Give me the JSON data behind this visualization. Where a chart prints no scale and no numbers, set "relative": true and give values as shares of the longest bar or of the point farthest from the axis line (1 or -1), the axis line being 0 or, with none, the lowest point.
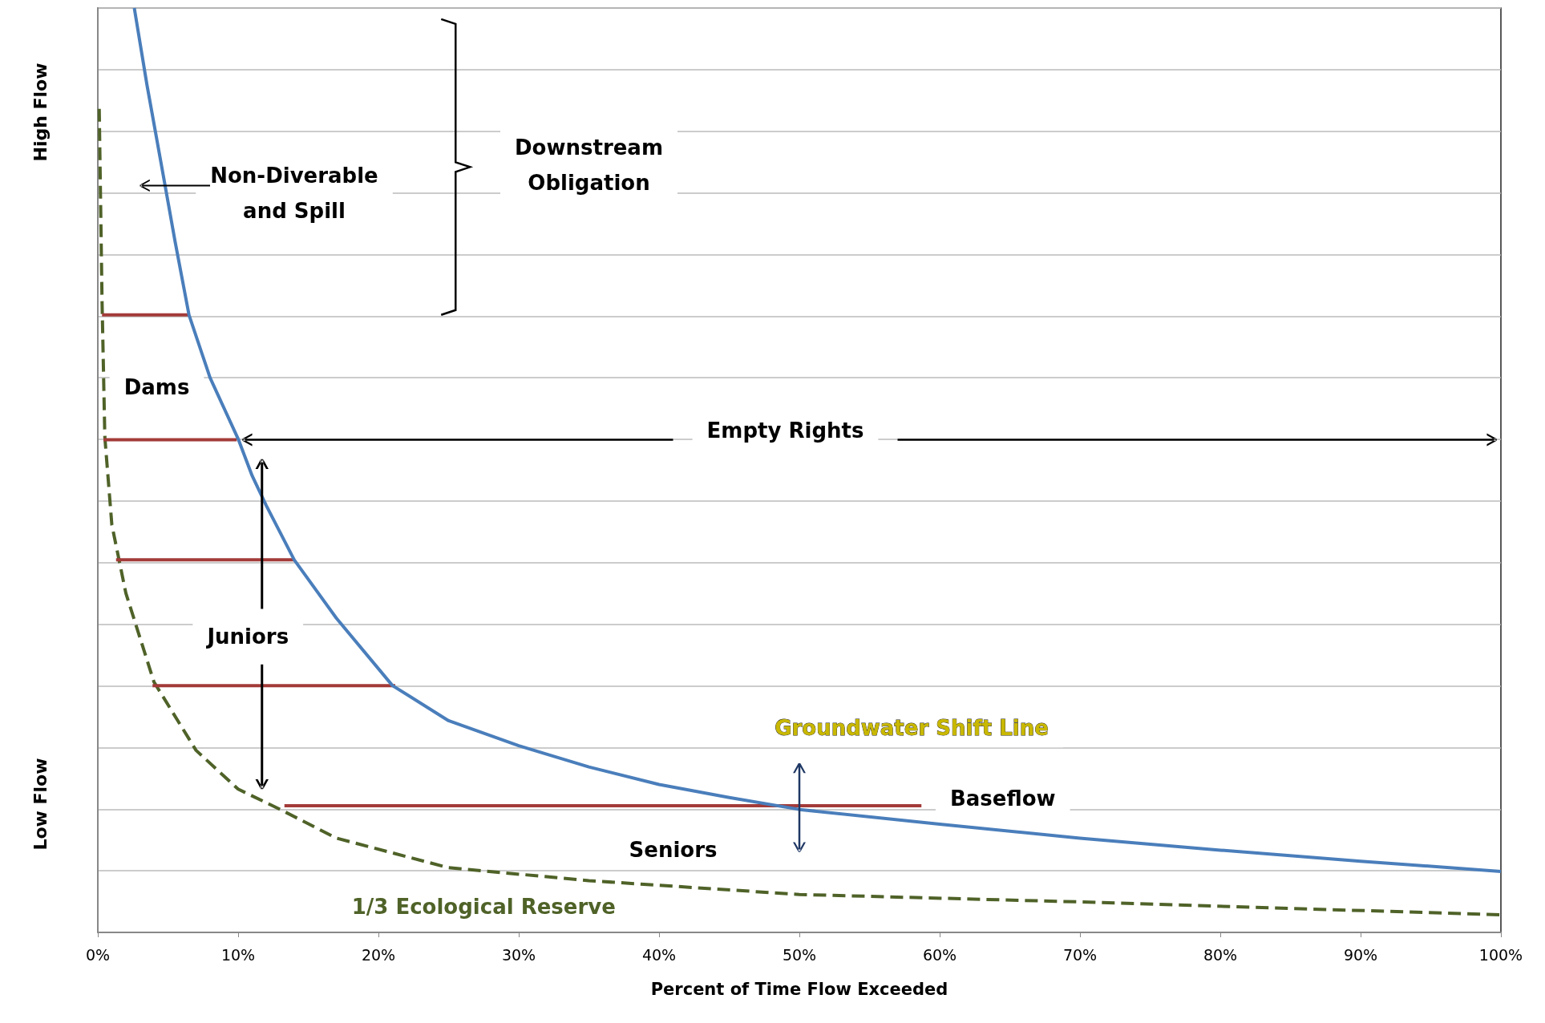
{
  "chart_data": {
    "type": "line",
    "relative": true,
    "xlabel": "Percent of Time Flow Exceeded",
    "xlim": [
      0,
      100
    ],
    "xticks": [
      {
        "value": 0,
        "label": "0%"
      },
      {
        "value": 10,
        "label": "10%"
      },
      {
        "value": 20,
        "label": "20%"
      },
      {
        "value": 30,
        "label": "30%"
      },
      {
        "value": 40,
        "label": "40%"
      },
      {
        "value": 50,
        "label": "50%"
      },
      {
        "value": 60,
        "label": "60%"
      },
      {
        "value": 70,
        "label": "70%"
      },
      {
        "value": 80,
        "label": "80%"
      },
      {
        "value": 90,
        "label": "90%"
      },
      {
        "value": 100,
        "label": "100%"
      }
    ],
    "grid": "y",
    "marker": "none",
    "series": [
      {
        "color": "#4a7ebb",
        "line_style": "solid",
        "x": [
          2.6,
          3.5,
          4.5,
          5.5,
          6.5,
          8,
          10,
          11,
          12,
          14,
          17,
          21,
          25,
          30,
          35,
          40,
          45,
          50,
          60,
          70,
          80,
          90,
          100
        ],
        "values": [
          1.0,
          0.917,
          0.833,
          0.748,
          0.668,
          0.6,
          0.534,
          0.494,
          0.462,
          0.403,
          0.34,
          0.267,
          0.229,
          0.202,
          0.179,
          0.16,
          0.146,
          0.133,
          0.117,
          0.102,
          0.089,
          0.077,
          0.066
        ]
      },
      {
        "color": "#4f6228",
        "line_style": "dashed",
        "x": [
          0.1,
          0.3,
          0.5,
          1,
          2,
          4,
          7,
          10,
          13,
          17,
          25,
          35,
          50,
          70,
          100
        ],
        "values": [
          0.891,
          0.684,
          0.536,
          0.441,
          0.367,
          0.271,
          0.197,
          0.155,
          0.133,
          0.102,
          0.07,
          0.056,
          0.041,
          0.033,
          0.019
        ]
      },
      {
        "color": "#a33b39",
        "line_style": "solid",
        "x": [
          0.3,
          6.5,
          null,
          0.4,
          9.9,
          null,
          1.3,
          14,
          null,
          3.9,
          21.2,
          null,
          13.3,
          58.7
        ],
        "values": [
          0.668,
          0.668,
          null,
          0.533,
          0.533,
          null,
          0.403,
          0.403,
          null,
          0.267,
          0.267,
          null,
          0.137,
          0.137
        ]
      }
    ],
    "annotations": [
      "High Flow",
      "Low Flow",
      "Non-Diverable\nand Spill",
      "Downstream\nObligation",
      "Dams",
      "Empty Rights",
      "Juniors",
      "Groundwater Shift Line",
      "Baseflow",
      "Seniors",
      "1/3 Ecological Reserve"
    ]
  }
}
